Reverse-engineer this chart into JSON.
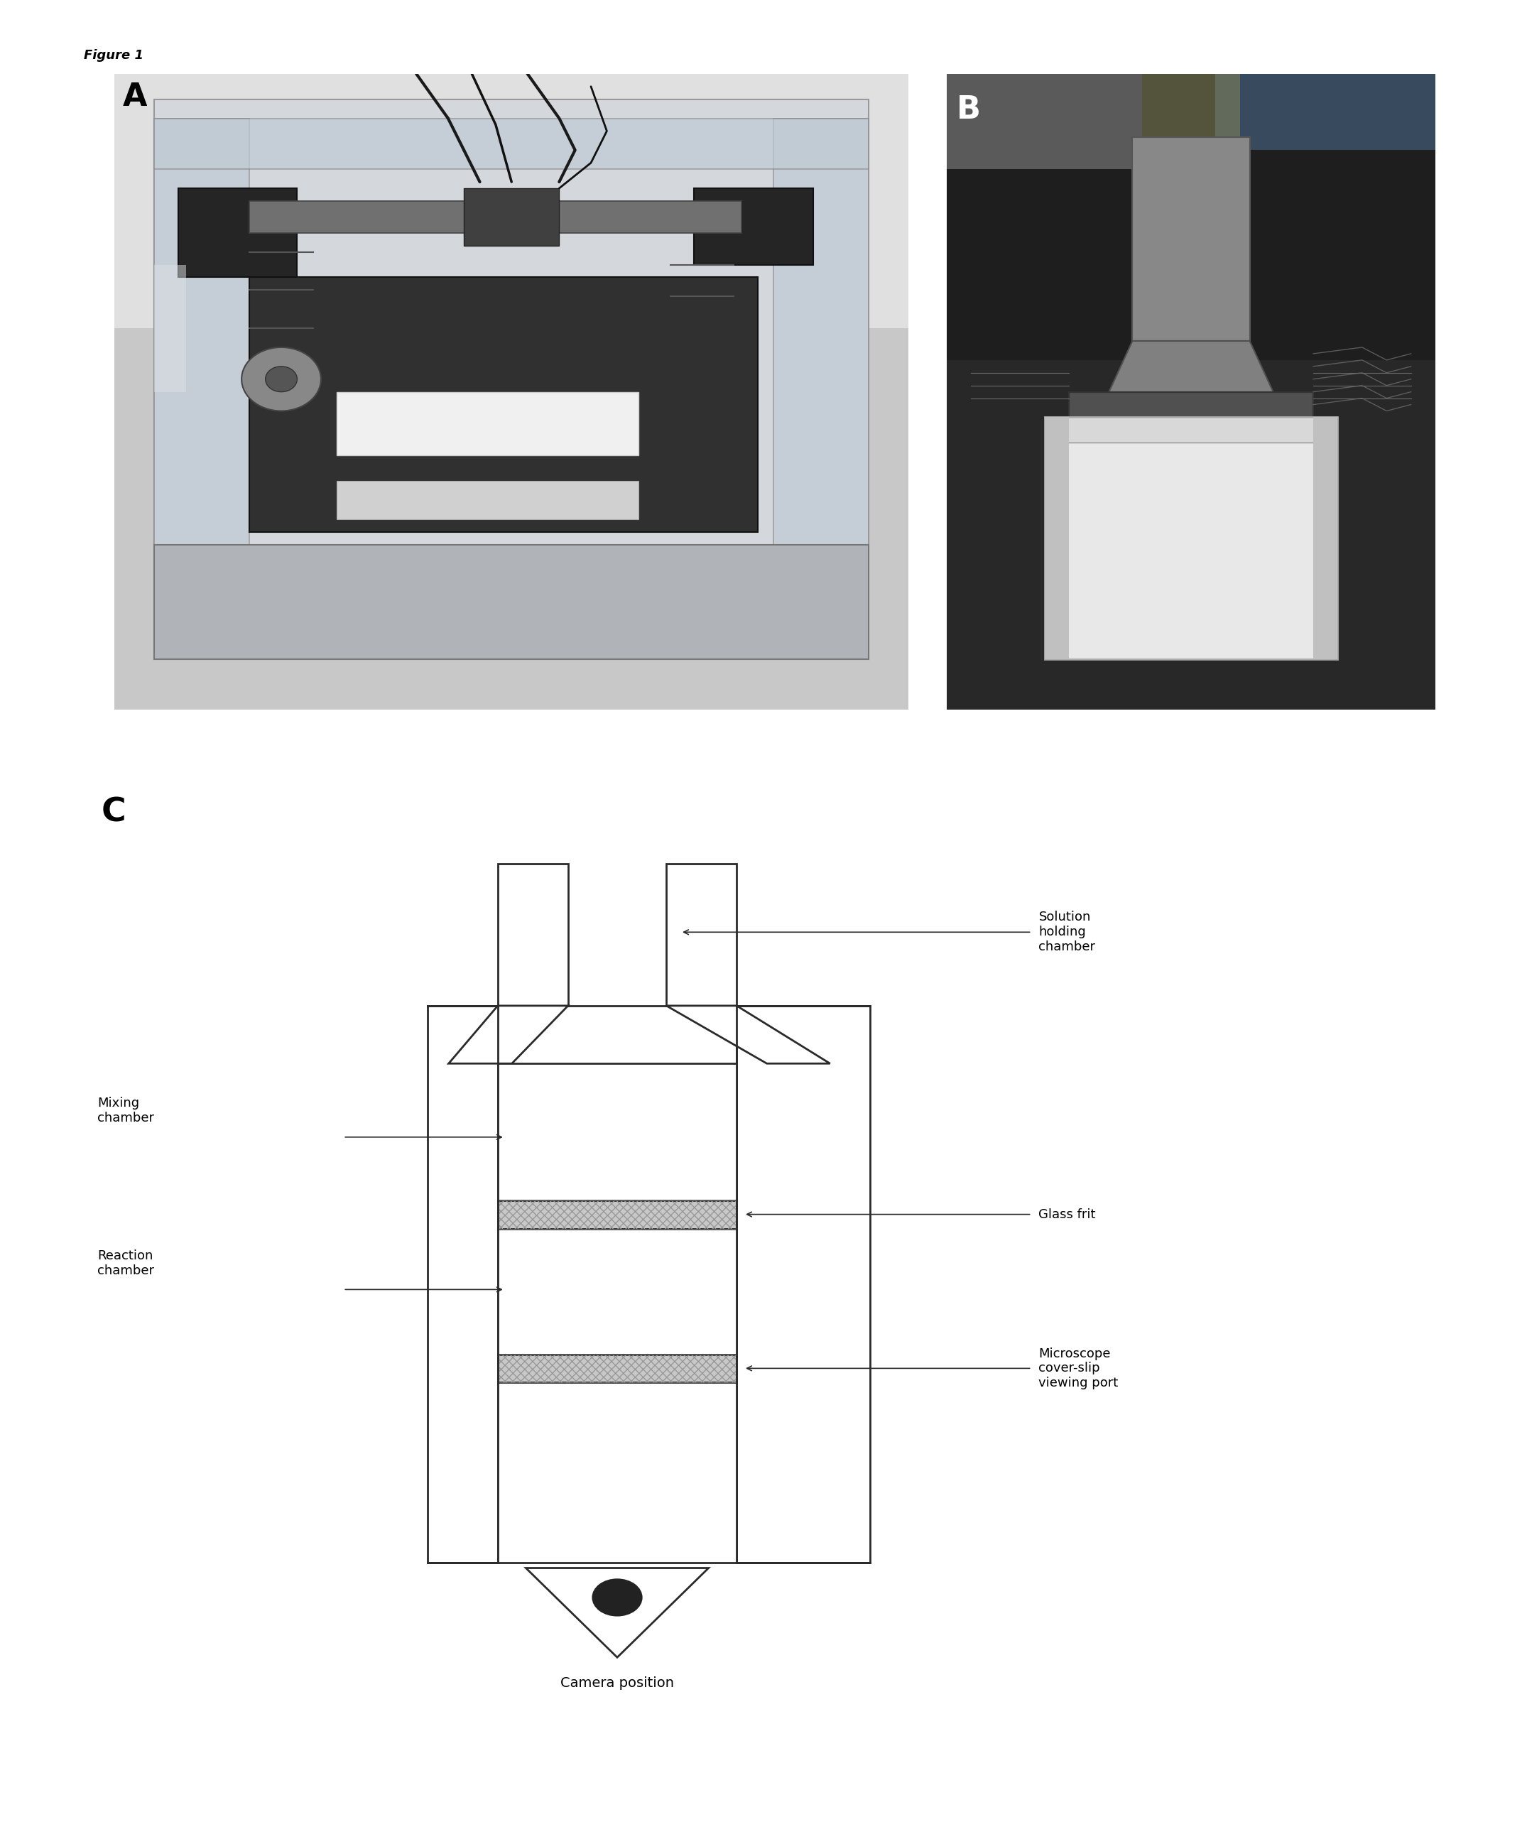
{
  "figure_label": "Figure 1",
  "panel_A_label": "A",
  "panel_B_label": "B",
  "panel_C_label": "C",
  "bg_color": "#ffffff",
  "diagram_line_color": "#2a2a2a",
  "glass_frit_color": "#c8c8c8",
  "annotations": {
    "solution_holding_chamber": "Solution\nholding\nchamber",
    "mixing_chamber": "Mixing\nchamber",
    "reaction_chamber": "Reaction\nchamber",
    "glass_frit": "Glass frit",
    "microscope_coverslip": "Microscope\ncover-slip\nviewing port",
    "camera_position": "Camera position"
  },
  "font_size_panel_label": 32,
  "font_size_annotation": 13,
  "font_size_figure_label": 13
}
